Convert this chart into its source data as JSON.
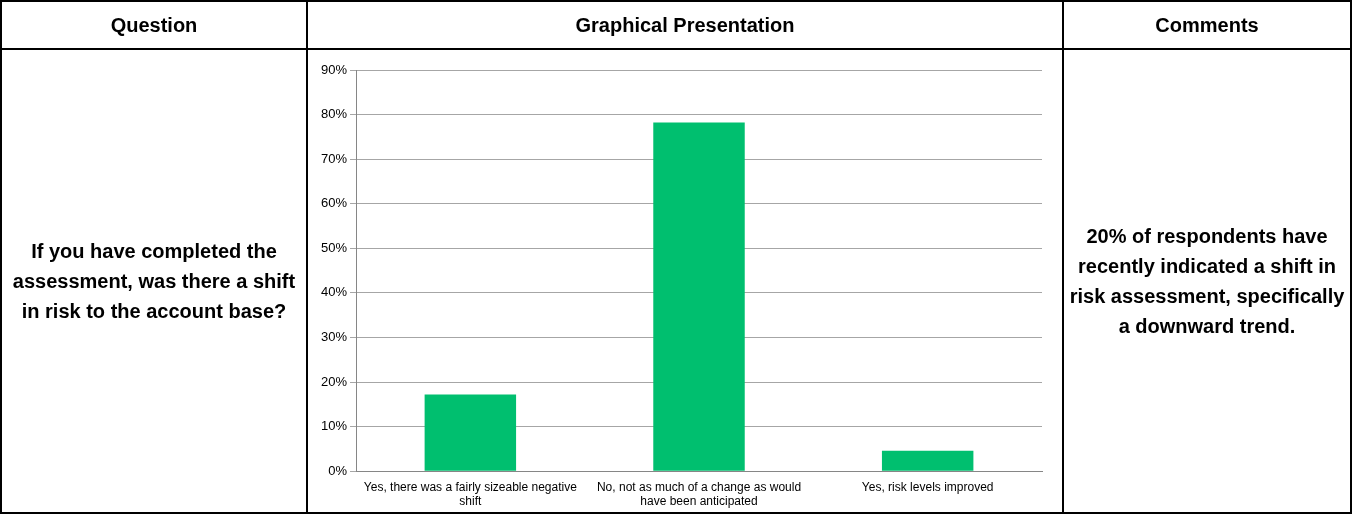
{
  "chart_data": {
    "type": "bar",
    "categories": [
      "Yes, there was a fairly sizeable negative shift",
      "No, not as much of a change as would have been anticipated",
      "Yes, risk levels improved"
    ],
    "values": [
      17.2,
      78.2,
      4.6
    ],
    "color": "#00bf6f",
    "ylim": [
      0,
      90
    ],
    "yticks": [
      {
        "value": 0,
        "label": "0%"
      },
      {
        "value": 10,
        "label": "10%"
      },
      {
        "value": 20,
        "label": "20%"
      },
      {
        "value": 30,
        "label": "30%"
      },
      {
        "value": 40,
        "label": "40%"
      },
      {
        "value": 50,
        "label": "50%"
      },
      {
        "value": 60,
        "label": "60%"
      },
      {
        "value": 70,
        "label": "70%"
      },
      {
        "value": 80,
        "label": "80%"
      },
      {
        "value": 90,
        "label": "90%"
      }
    ],
    "grid": "y",
    "legend": false,
    "annotations": [
      "Question",
      "Graphical Presentation",
      "Comments",
      "If you have completed the assessment, was there a shift in risk to the account base?",
      "20% of respondents have recently indicated a shift in risk assessment, specifically a downward trend."
    ]
  }
}
